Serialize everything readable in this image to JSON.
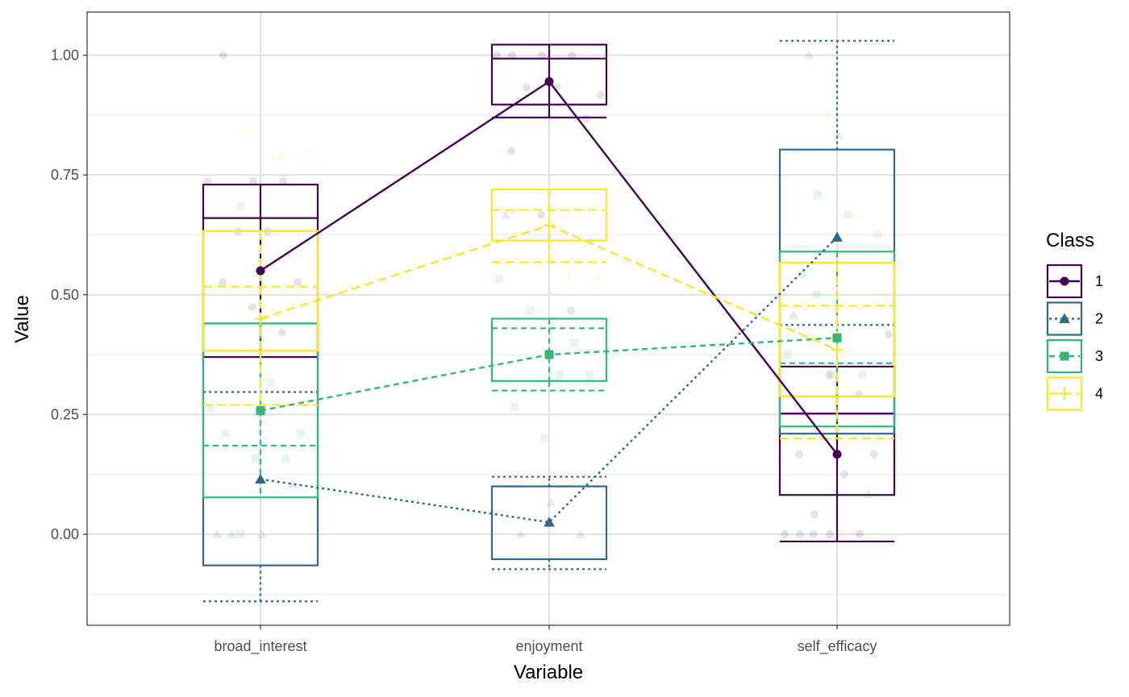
{
  "chart_data": {
    "type": "line",
    "title": "",
    "xlabel": "Variable",
    "ylabel": "Value",
    "categories": [
      "broad_interest",
      "enjoyment",
      "self_efficacy"
    ],
    "ylim": [
      -0.19,
      1.09
    ],
    "y_ticks": [
      0.0,
      0.25,
      0.5,
      0.75,
      1.0
    ],
    "y_tick_labels": [
      "0.00",
      "0.25",
      "0.50",
      "0.75",
      "1.00"
    ],
    "grid": true,
    "legend": {
      "title": "Class",
      "position": "right"
    },
    "series": [
      {
        "name": "1",
        "color": "#440154",
        "linestyle": "solid",
        "marker": "circle",
        "values": [
          0.55,
          0.945,
          0.167
        ],
        "boxes": [
          {
            "low": 0.37,
            "q1": 0.37,
            "mid": 0.66,
            "q3": 0.73,
            "high": 0.73
          },
          {
            "low": 0.87,
            "q1": 0.897,
            "mid": 0.993,
            "q3": 1.022,
            "high": 1.022
          },
          {
            "low": -0.015,
            "q1": 0.082,
            "mid": 0.252,
            "q3": 0.35,
            "high": 0.35
          }
        ]
      },
      {
        "name": "2",
        "color": "#31688E",
        "linestyle": "dotted",
        "marker": "triangle",
        "values": [
          0.115,
          0.025,
          0.62
        ],
        "boxes": [
          {
            "low": -0.14,
            "q1": -0.065,
            "mid": 0.297,
            "q3": 0.44,
            "high": 0.44
          },
          {
            "low": -0.073,
            "q1": -0.052,
            "mid": 0.1,
            "q3": 0.1,
            "high": 0.12
          },
          {
            "low": 0.21,
            "q1": 0.21,
            "mid": 0.437,
            "q3": 0.803,
            "high": 1.03
          }
        ]
      },
      {
        "name": "3",
        "color": "#35B779",
        "linestyle": "dashed",
        "marker": "square",
        "values": [
          0.258,
          0.375,
          0.41
        ],
        "boxes": [
          {
            "low": 0.077,
            "q1": 0.077,
            "mid": 0.185,
            "q3": 0.44,
            "high": 0.44
          },
          {
            "low": 0.3,
            "q1": 0.32,
            "mid": 0.43,
            "q3": 0.45,
            "high": 0.45
          },
          {
            "low": 0.225,
            "q1": 0.225,
            "mid": 0.357,
            "q3": 0.59,
            "high": 0.59
          }
        ]
      },
      {
        "name": "4",
        "color": "#FDE725",
        "linestyle": "longdash",
        "marker": "plus",
        "values": [
          0.45,
          0.645,
          0.385
        ],
        "boxes": [
          {
            "low": 0.27,
            "q1": 0.383,
            "mid": 0.517,
            "q3": 0.633,
            "high": 0.633
          },
          {
            "low": 0.568,
            "q1": 0.613,
            "mid": 0.677,
            "q3": 0.72,
            "high": 0.72
          },
          {
            "low": 0.2,
            "q1": 0.288,
            "mid": 0.477,
            "q3": 0.567,
            "high": 0.567
          }
        ]
      }
    ],
    "jitter_points": [
      {
        "series": "1",
        "category": "broad_interest",
        "values": [
          1.0,
          0.737,
          0.737,
          0.737,
          0.632,
          0.632,
          0.526,
          0.526,
          0.474,
          0.421
        ]
      },
      {
        "series": "1",
        "category": "enjoyment",
        "values": [
          1.0,
          1.0,
          1.0,
          1.0,
          0.933,
          0.933,
          0.867,
          0.8,
          0.667,
          0.467,
          0.917
        ]
      },
      {
        "series": "1",
        "category": "self_efficacy",
        "values": [
          0.0,
          0.0,
          0.0,
          0.0,
          0.042,
          0.125,
          0.167,
          0.167,
          0.333,
          0.292,
          0.417,
          0.0
        ]
      },
      {
        "series": "2",
        "category": "broad_interest",
        "values": [
          0.0,
          0.0,
          0.105,
          0.0
        ]
      },
      {
        "series": "2",
        "category": "enjoyment",
        "values": [
          0.0,
          0.067,
          0.0,
          0.667
        ]
      },
      {
        "series": "2",
        "category": "self_efficacy",
        "values": [
          1.0,
          0.833,
          0.083,
          0.458
        ]
      },
      {
        "series": "3",
        "category": "broad_interest",
        "values": [
          0.684,
          0.316,
          0.211,
          0.211,
          0.158,
          0.158,
          0.263,
          0.0
        ]
      },
      {
        "series": "3",
        "category": "enjoyment",
        "values": [
          0.467,
          0.333,
          0.333,
          0.267,
          0.2,
          0.4,
          0.533
        ]
      },
      {
        "series": "3",
        "category": "self_efficacy",
        "values": [
          0.708,
          0.667,
          0.625,
          0.542,
          0.333,
          0.333,
          0.375,
          0.5
        ]
      },
      {
        "series": "4",
        "category": "broad_interest",
        "values": [
          0.842,
          0.789,
          0.789,
          0.474,
          0.474,
          0.579
        ]
      },
      {
        "series": "4",
        "category": "enjoyment",
        "values": [
          0.467,
          0.533,
          0.533,
          0.667,
          0.667,
          0.6,
          0.8
        ]
      },
      {
        "series": "4",
        "category": "self_efficacy",
        "values": [
          0.875,
          0.667,
          0.5,
          0.417,
          0.0,
          0.083
        ]
      }
    ]
  }
}
